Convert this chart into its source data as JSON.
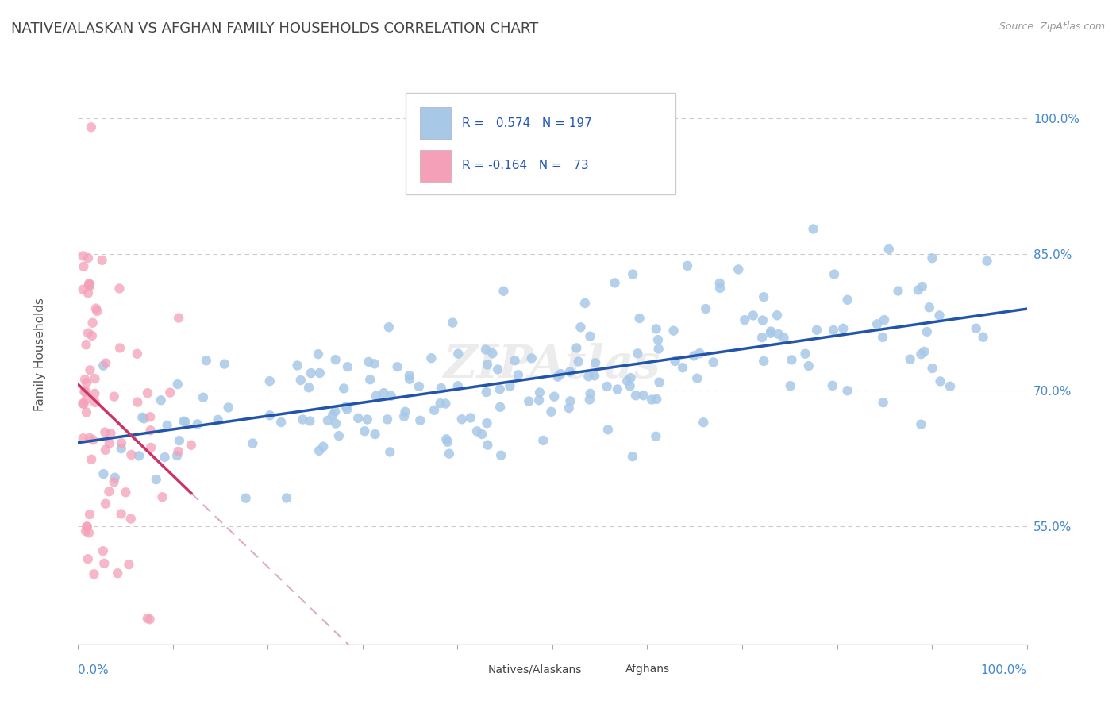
{
  "title": "NATIVE/ALASKAN VS AFGHAN FAMILY HOUSEHOLDS CORRELATION CHART",
  "source": "Source: ZipAtlas.com",
  "ylabel": "Family Households",
  "y_ticks": [
    "55.0%",
    "70.0%",
    "85.0%",
    "100.0%"
  ],
  "y_tick_vals": [
    0.55,
    0.7,
    0.85,
    1.0
  ],
  "x_range": [
    0.0,
    1.0
  ],
  "y_range": [
    0.42,
    1.06
  ],
  "blue_color": "#A8C8E8",
  "pink_color": "#F4A0B8",
  "blue_line_color": "#2255AA",
  "pink_line_color": "#CC3366",
  "dash_line_color": "#DDAACC",
  "R_blue": 0.574,
  "N_blue": 197,
  "R_pink": -0.164,
  "N_pink": 73,
  "legend_label_blue": "Natives/Alaskans",
  "legend_label_pink": "Afghans",
  "title_color": "#444444",
  "axis_label_color": "#4488CC",
  "watermark": "ZIPAtlas",
  "legend_text_color": "#2255BB"
}
